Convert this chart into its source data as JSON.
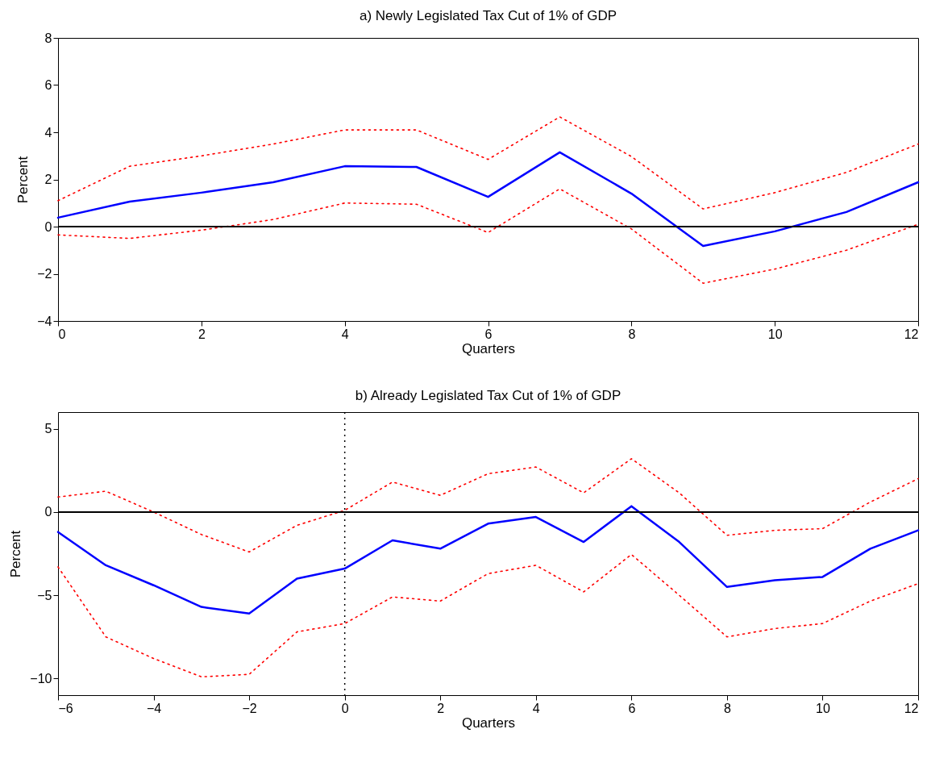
{
  "chart_data": [
    {
      "type": "line",
      "title": "a) Newly Legislated Tax Cut of 1% of GDP",
      "xlabel": "Quarters",
      "ylabel": "Percent",
      "x": [
        0,
        1,
        2,
        3,
        4,
        5,
        6,
        7,
        8,
        9,
        10,
        11,
        12
      ],
      "xlim": [
        0,
        12
      ],
      "xticks": [
        0,
        2,
        4,
        6,
        8,
        10,
        12
      ],
      "ylim": [
        -4,
        8
      ],
      "yticks": [
        -4,
        -2,
        0,
        2,
        4,
        6,
        8
      ],
      "grid": false,
      "series": [
        {
          "color": "#0000ff",
          "line_style": "solid",
          "values": [
            0.38,
            1.06,
            1.44,
            1.88,
            2.56,
            2.53,
            1.26,
            3.15,
            1.4,
            -0.82,
            -0.2,
            0.62,
            1.88
          ]
        },
        {
          "color": "#ff0000",
          "line_style": "dotted",
          "values": [
            1.1,
            2.56,
            3.0,
            3.5,
            4.1,
            4.1,
            2.85,
            4.65,
            2.97,
            0.75,
            1.44,
            2.3,
            3.5
          ]
        },
        {
          "color": "#ff0000",
          "line_style": "dotted",
          "values": [
            -0.35,
            -0.5,
            -0.15,
            0.3,
            1.0,
            0.95,
            -0.25,
            1.6,
            -0.1,
            -2.4,
            -1.8,
            -1.0,
            0.1
          ]
        }
      ],
      "ref_lines": [
        {
          "axis": "y",
          "value": 0,
          "color": "#000000",
          "line_style": "solid"
        }
      ]
    },
    {
      "type": "line",
      "title": "b) Already Legislated Tax Cut of 1% of GDP",
      "xlabel": "Quarters",
      "ylabel": "Percent",
      "x": [
        -6,
        -5,
        -4,
        -3,
        -2,
        -1,
        0,
        1,
        2,
        3,
        4,
        5,
        6,
        7,
        8,
        9,
        10,
        11,
        12
      ],
      "xlim": [
        -6,
        12
      ],
      "xticks": [
        -6,
        -4,
        -2,
        0,
        2,
        4,
        6,
        8,
        10,
        12
      ],
      "ylim": [
        -11,
        6
      ],
      "yticks": [
        -10,
        -5,
        0,
        5
      ],
      "grid": false,
      "series": [
        {
          "color": "#0000ff",
          "line_style": "solid",
          "values": [
            -1.2,
            -3.2,
            -4.4,
            -5.7,
            -6.1,
            -4.0,
            -3.4,
            -1.7,
            -2.2,
            -0.7,
            -0.3,
            -1.8,
            0.35,
            -1.8,
            -4.5,
            -4.1,
            -3.9,
            -2.2,
            -1.1
          ]
        },
        {
          "color": "#ff0000",
          "line_style": "dotted",
          "values": [
            0.9,
            1.25,
            0,
            -1.35,
            -2.4,
            -0.8,
            0.1,
            1.8,
            1.0,
            2.3,
            2.7,
            1.15,
            3.2,
            1.15,
            -1.4,
            -1.1,
            -1.0,
            0.6,
            2.0
          ]
        },
        {
          "color": "#ff0000",
          "line_style": "dotted",
          "values": [
            -3.3,
            -7.5,
            -8.8,
            -9.9,
            -9.75,
            -7.2,
            -6.7,
            -5.1,
            -5.35,
            -3.7,
            -3.2,
            -4.8,
            -2.55,
            -5.0,
            -7.5,
            -7.0,
            -6.7,
            -5.35,
            -4.3
          ]
        }
      ],
      "ref_lines": [
        {
          "axis": "y",
          "value": 0,
          "color": "#000000",
          "line_style": "solid"
        },
        {
          "axis": "x",
          "value": 0,
          "color": "#000000",
          "line_style": "dotted"
        }
      ]
    }
  ]
}
